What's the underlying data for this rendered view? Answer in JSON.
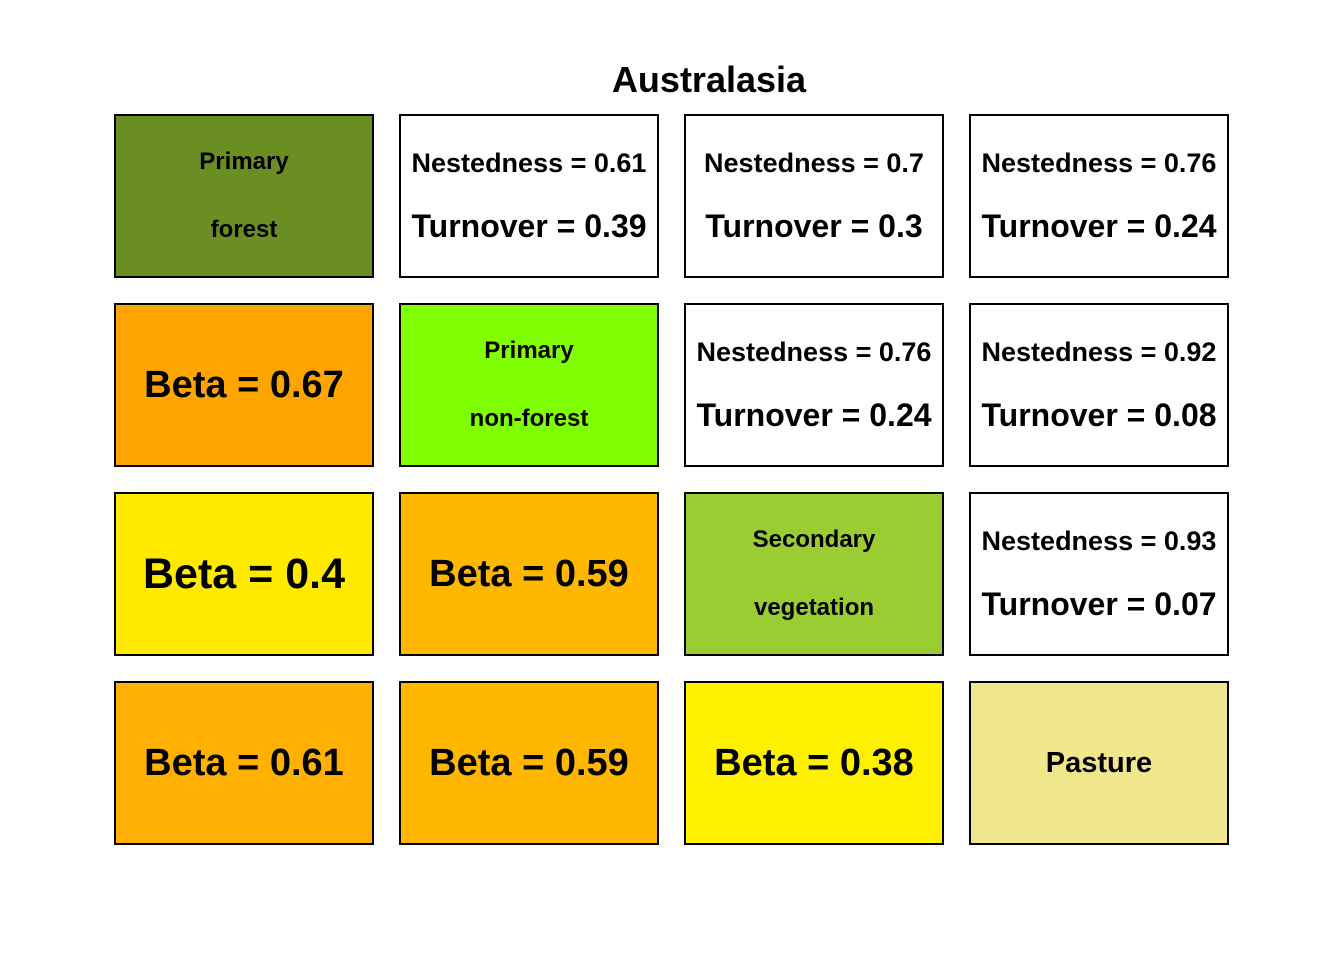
{
  "chart_data": {
    "type": "table",
    "title": "Australasia",
    "habitats": [
      {
        "lines": [
          "Primary",
          "forest"
        ],
        "color": "#6b8e23"
      },
      {
        "lines": [
          "Primary",
          "non-forest"
        ],
        "color": "#7fff00"
      },
      {
        "lines": [
          "Secondary",
          "vegetation"
        ],
        "color": "#9acd32"
      },
      {
        "lines": [
          "Pasture"
        ],
        "color": "#f0e68c"
      }
    ],
    "cells": [
      [
        {
          "kind": "habitat",
          "habitat": 0
        },
        {
          "kind": "pair",
          "nestedness": 0.61,
          "turnover": 0.39
        },
        {
          "kind": "pair",
          "nestedness": 0.7,
          "turnover": 0.3
        },
        {
          "kind": "pair",
          "nestedness": 0.76,
          "turnover": 0.24
        }
      ],
      [
        {
          "kind": "beta",
          "beta": 0.67,
          "color": "#ffa500"
        },
        {
          "kind": "habitat",
          "habitat": 1
        },
        {
          "kind": "pair",
          "nestedness": 0.76,
          "turnover": 0.24
        },
        {
          "kind": "pair",
          "nestedness": 0.92,
          "turnover": 0.08
        }
      ],
      [
        {
          "kind": "beta",
          "beta": 0.4,
          "color": "#ffea00"
        },
        {
          "kind": "beta",
          "beta": 0.59,
          "color": "#ffb700"
        },
        {
          "kind": "habitat",
          "habitat": 2
        },
        {
          "kind": "pair",
          "nestedness": 0.93,
          "turnover": 0.07
        }
      ],
      [
        {
          "kind": "beta",
          "beta": 0.61,
          "color": "#ffb000"
        },
        {
          "kind": "beta",
          "beta": 0.59,
          "color": "#ffb700"
        },
        {
          "kind": "beta",
          "beta": 0.38,
          "color": "#fff000"
        },
        {
          "kind": "habitat",
          "habitat": 3
        }
      ]
    ],
    "labels": {
      "beta": "Beta",
      "nestedness": "Nestedness",
      "turnover": "Turnover",
      "equals": " = "
    }
  }
}
